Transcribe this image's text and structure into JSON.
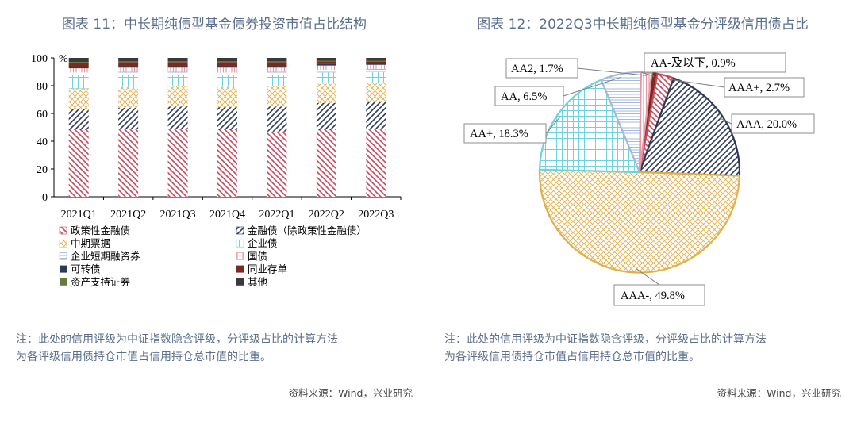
{
  "left": {
    "title": "图表 11：中长期纯债型基金债券投资市值占比结构",
    "note_line1": "注：此处的信用评级为中证指数隐含评级，分评级占比的计算方法",
    "note_line2": "为各评级信用债持仓市值占信用持仓总市值的比重。",
    "source": "资料来源：Wind，兴业研究"
  },
  "right": {
    "title": "图表 12：2022Q3中长期纯债型基金分评级信用债占比",
    "note_line1": "注：此处的信用评级为中证指数隐含评级，分评级占比的计算方法",
    "note_line2": "为各评级信用债持仓市值占信用持仓总市值的比重。",
    "source": "资料来源：Wind，兴业研究"
  },
  "colors": {
    "title": "#5b6f8c",
    "policy_bank": "#c9465a",
    "financial": "#2d3a57",
    "mtn": "#e2b04a",
    "corporate": "#6dd4de",
    "short_term": "#a7b9d6",
    "treasury": "#e39aa6",
    "convertible": "#2d3a57",
    "ncd": "#7a2a1e",
    "abs": "#6a7a3a",
    "other": "#3a3a3a"
  },
  "chart_data": [
    {
      "type": "bar",
      "stacked": true,
      "unit": "%",
      "ylim": [
        0,
        100
      ],
      "yticks": [
        0,
        20,
        40,
        60,
        80,
        100
      ],
      "categories": [
        "2021Q1",
        "2021Q2",
        "2021Q3",
        "2021Q4",
        "2022Q1",
        "2022Q2",
        "2022Q3"
      ],
      "series": [
        {
          "name": "政策性金融债",
          "color_key": "policy_bank",
          "pattern": "diag-down",
          "values": [
            48,
            48.5,
            48.5,
            48,
            47,
            48,
            48.5
          ]
        },
        {
          "name": "金融债（除政策性金融债）",
          "color_key": "financial",
          "pattern": "diag-up",
          "values": [
            15,
            15.5,
            16.5,
            16.5,
            18,
            19.5,
            20
          ]
        },
        {
          "name": "中期票据",
          "color_key": "mtn",
          "pattern": "cross",
          "values": [
            15,
            15,
            14.5,
            14.5,
            14.5,
            14,
            14
          ]
        },
        {
          "name": "企业债",
          "color_key": "corporate",
          "pattern": "grid",
          "values": [
            9.5,
            9,
            8.5,
            8.5,
            8.5,
            8,
            7.5
          ]
        },
        {
          "name": "企业短期融资券",
          "color_key": "short_term",
          "pattern": "hlines",
          "values": [
            2,
            2,
            2,
            2,
            2,
            2,
            2
          ]
        },
        {
          "name": "国债",
          "color_key": "treasury",
          "pattern": "vlines",
          "values": [
            3,
            3,
            3,
            3.5,
            3,
            3,
            3
          ]
        },
        {
          "name": "可转债",
          "color_key": "convertible",
          "pattern": "solid",
          "values": [
            1,
            1,
            1,
            1,
            1,
            1,
            1
          ]
        },
        {
          "name": "同业存单",
          "color_key": "ncd",
          "pattern": "solid",
          "values": [
            3,
            3,
            3,
            3,
            3,
            2,
            1.5
          ]
        },
        {
          "name": "资产支持证券",
          "color_key": "abs",
          "pattern": "solid",
          "values": [
            0.5,
            0.5,
            0.5,
            0.5,
            0.5,
            0.5,
            0.5
          ]
        },
        {
          "name": "其他",
          "color_key": "other",
          "pattern": "solid",
          "values": [
            3,
            2.5,
            2.5,
            2.5,
            2.5,
            2,
            2
          ]
        }
      ]
    },
    {
      "type": "pie",
      "slices": [
        {
          "label": "AA-及以下, 0.9%",
          "value": 0.9,
          "color_key": "ncd",
          "pattern": "solid"
        },
        {
          "label": "AAA+, 2.7%",
          "value": 2.7,
          "color_key": "policy_bank",
          "pattern": "diag-down"
        },
        {
          "label": "AAA, 20.0%",
          "value": 20.0,
          "color_key": "financial",
          "pattern": "diag-up"
        },
        {
          "label": "AAA-, 49.8%",
          "value": 49.8,
          "color_key": "mtn",
          "pattern": "cross"
        },
        {
          "label": "AA+, 18.3%",
          "value": 18.3,
          "color_key": "corporate",
          "pattern": "grid"
        },
        {
          "label": "AA, 6.5%",
          "value": 6.5,
          "color_key": "short_term",
          "pattern": "hlines"
        },
        {
          "label": "AA2, 1.7%",
          "value": 1.7,
          "color_key": "treasury",
          "pattern": "vlines"
        }
      ]
    }
  ]
}
